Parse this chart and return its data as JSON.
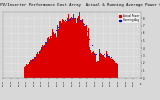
{
  "title": "Solar PV/Inverter Performance East Array  Actual & Running Average Power Output",
  "title_fontsize": 2.8,
  "bar_color": "#dd0000",
  "avg_color": "#0000cc",
  "background_color": "#d8d8d8",
  "plot_bg_color": "#d8d8d8",
  "grid_color": "#ffffff",
  "num_points": 288,
  "peak_index": 145,
  "peak_value": 1.0,
  "ylim": [
    0,
    1.1
  ],
  "legend_entries": [
    "Actual Power",
    "Running Avg"
  ],
  "legend_colors": [
    "#dd0000",
    "#0000cc"
  ],
  "ylabel_right_labels": [
    "8.0",
    "7.0",
    "6.0",
    "5.0",
    "4.0",
    "3.0",
    "2.0",
    "1.0",
    "0.0"
  ],
  "xtick_labels": [
    "12/14",
    "12/15",
    "12/16",
    "12/17",
    "12/18",
    "12/19",
    "12/20",
    "12/21",
    "12/22",
    "12/23",
    "12/24",
    "12/25",
    "12/26",
    "12/27",
    "12/28",
    "12/29",
    "12/30",
    "12/31",
    "1/1"
  ]
}
